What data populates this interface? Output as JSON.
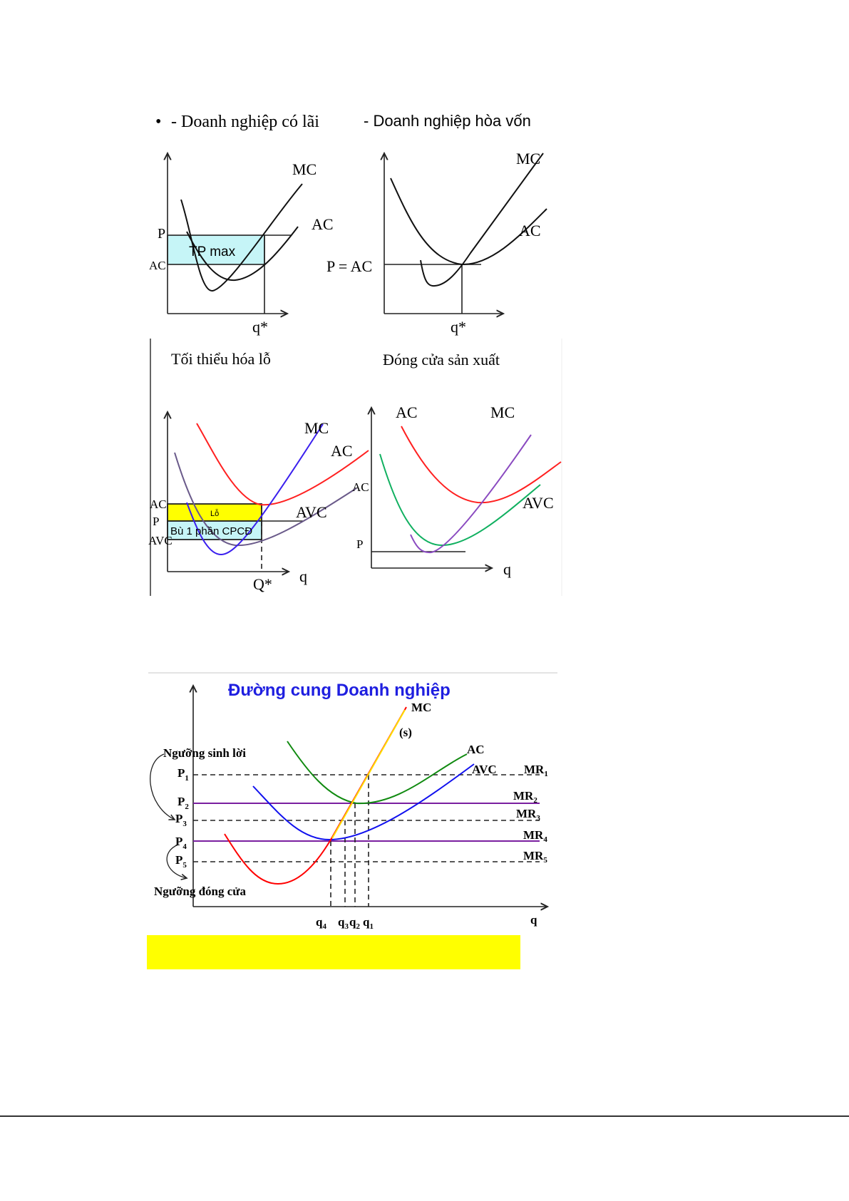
{
  "headings": {
    "bullet": "•",
    "profit": "- Doanh nghiệp có lãi",
    "breakeven": "- Doanh nghiệp hòa vốn",
    "minimize_loss": "Tối thiểu hóa lỗ",
    "shutdown": "Đóng cửa sản xuất"
  },
  "panel_profit": {
    "mc": "MC",
    "ac": "AC",
    "p": "P",
    "ac_axis": "AC",
    "area": "TP max",
    "q": "q*"
  },
  "panel_breakeven": {
    "mc": "MC",
    "ac": "AC",
    "p_eq": "P = AC",
    "q": "q*"
  },
  "panel_loss": {
    "mc": "MC",
    "ac": "AC",
    "avc": "AVC",
    "ac_axis": "AC",
    "p_axis": "P",
    "avc_axis": "AVC",
    "loss": "Lỗ",
    "cover": "Bù 1 phần CPCĐ",
    "q_star": "Q*",
    "q": "q"
  },
  "panel_shutdown": {
    "ac": "AC",
    "mc": "MC",
    "avc": "AVC",
    "ac_axis": "AC",
    "p_axis": "P",
    "q": "q"
  },
  "supply": {
    "title": "Đường cung Doanh nghiệp",
    "mc": "MC",
    "s": "(s)",
    "ac": "AC",
    "avc": "AVC",
    "profit_threshold": "Ngưỡng sinh lời",
    "shutdown_threshold": "Ngưỡng đóng cửa",
    "prices": [
      {
        "l": "P",
        "s": "1"
      },
      {
        "l": "P",
        "s": "2"
      },
      {
        "l": "P",
        "s": "3"
      },
      {
        "l": "P",
        "s": "4"
      },
      {
        "l": "P",
        "s": "5"
      }
    ],
    "mr": [
      {
        "l": "MR",
        "s": "1"
      },
      {
        "l": "MR",
        "s": "2"
      },
      {
        "l": "MR",
        "s": "3"
      },
      {
        "l": "MR",
        "s": "4"
      },
      {
        "l": "MR",
        "s": "5"
      }
    ],
    "qs": [
      {
        "l": "q",
        "s": "4"
      },
      {
        "l": "q",
        "s": "3"
      },
      {
        "l": "q",
        "s": "2"
      },
      {
        "l": "q",
        "s": "1"
      }
    ],
    "q": "q"
  },
  "colors": {
    "title_blue": "#1f1fe0",
    "highlight": "#ffff00",
    "cyan": "#c6f5f7",
    "red": "#ff0000",
    "green": "#108a10",
    "blue": "#1010ee",
    "purple": "#7a1fa0"
  }
}
